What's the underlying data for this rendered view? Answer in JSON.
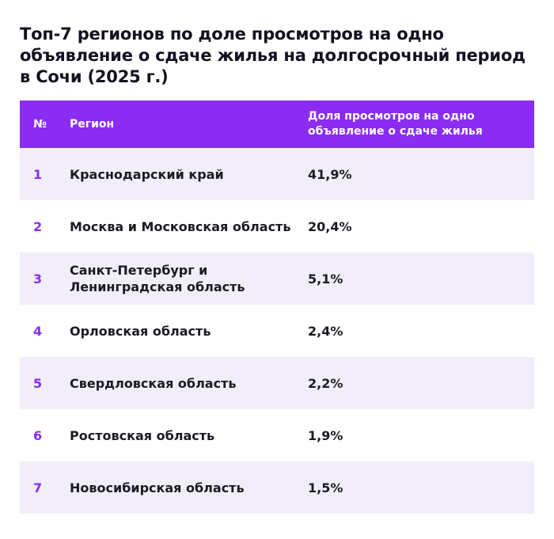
{
  "title": "Топ-7 регионов по доле просмотров на одно объявление о сдаче жилья на долгосрочный период в Сочи (2025 г.)",
  "table": {
    "headers": {
      "num": "№",
      "region": "Регион",
      "share": "Доля просмотров на одно объявление о сдаче жилья"
    },
    "rows": [
      {
        "num": "1",
        "region": "Краснодарский край",
        "share": "41,9%"
      },
      {
        "num": "2",
        "region": "Москва и Московская область",
        "share": "20,4%"
      },
      {
        "num": "3",
        "region": "Санкт-Петербург и Ленинградская область",
        "share": "5,1%"
      },
      {
        "num": "4",
        "region": "Орловская область",
        "share": "2,4%"
      },
      {
        "num": "5",
        "region": "Свердловская область",
        "share": "2,2%"
      },
      {
        "num": "6",
        "region": "Ростовская область",
        "share": "1,9%"
      },
      {
        "num": "7",
        "region": "Новосибирская область",
        "share": "1,5%"
      }
    ]
  },
  "colors": {
    "header_bg": "#8a2cf2",
    "row_shade": "#f1eef9",
    "accent": "#8a2cf2",
    "text": "#1a1a24"
  }
}
